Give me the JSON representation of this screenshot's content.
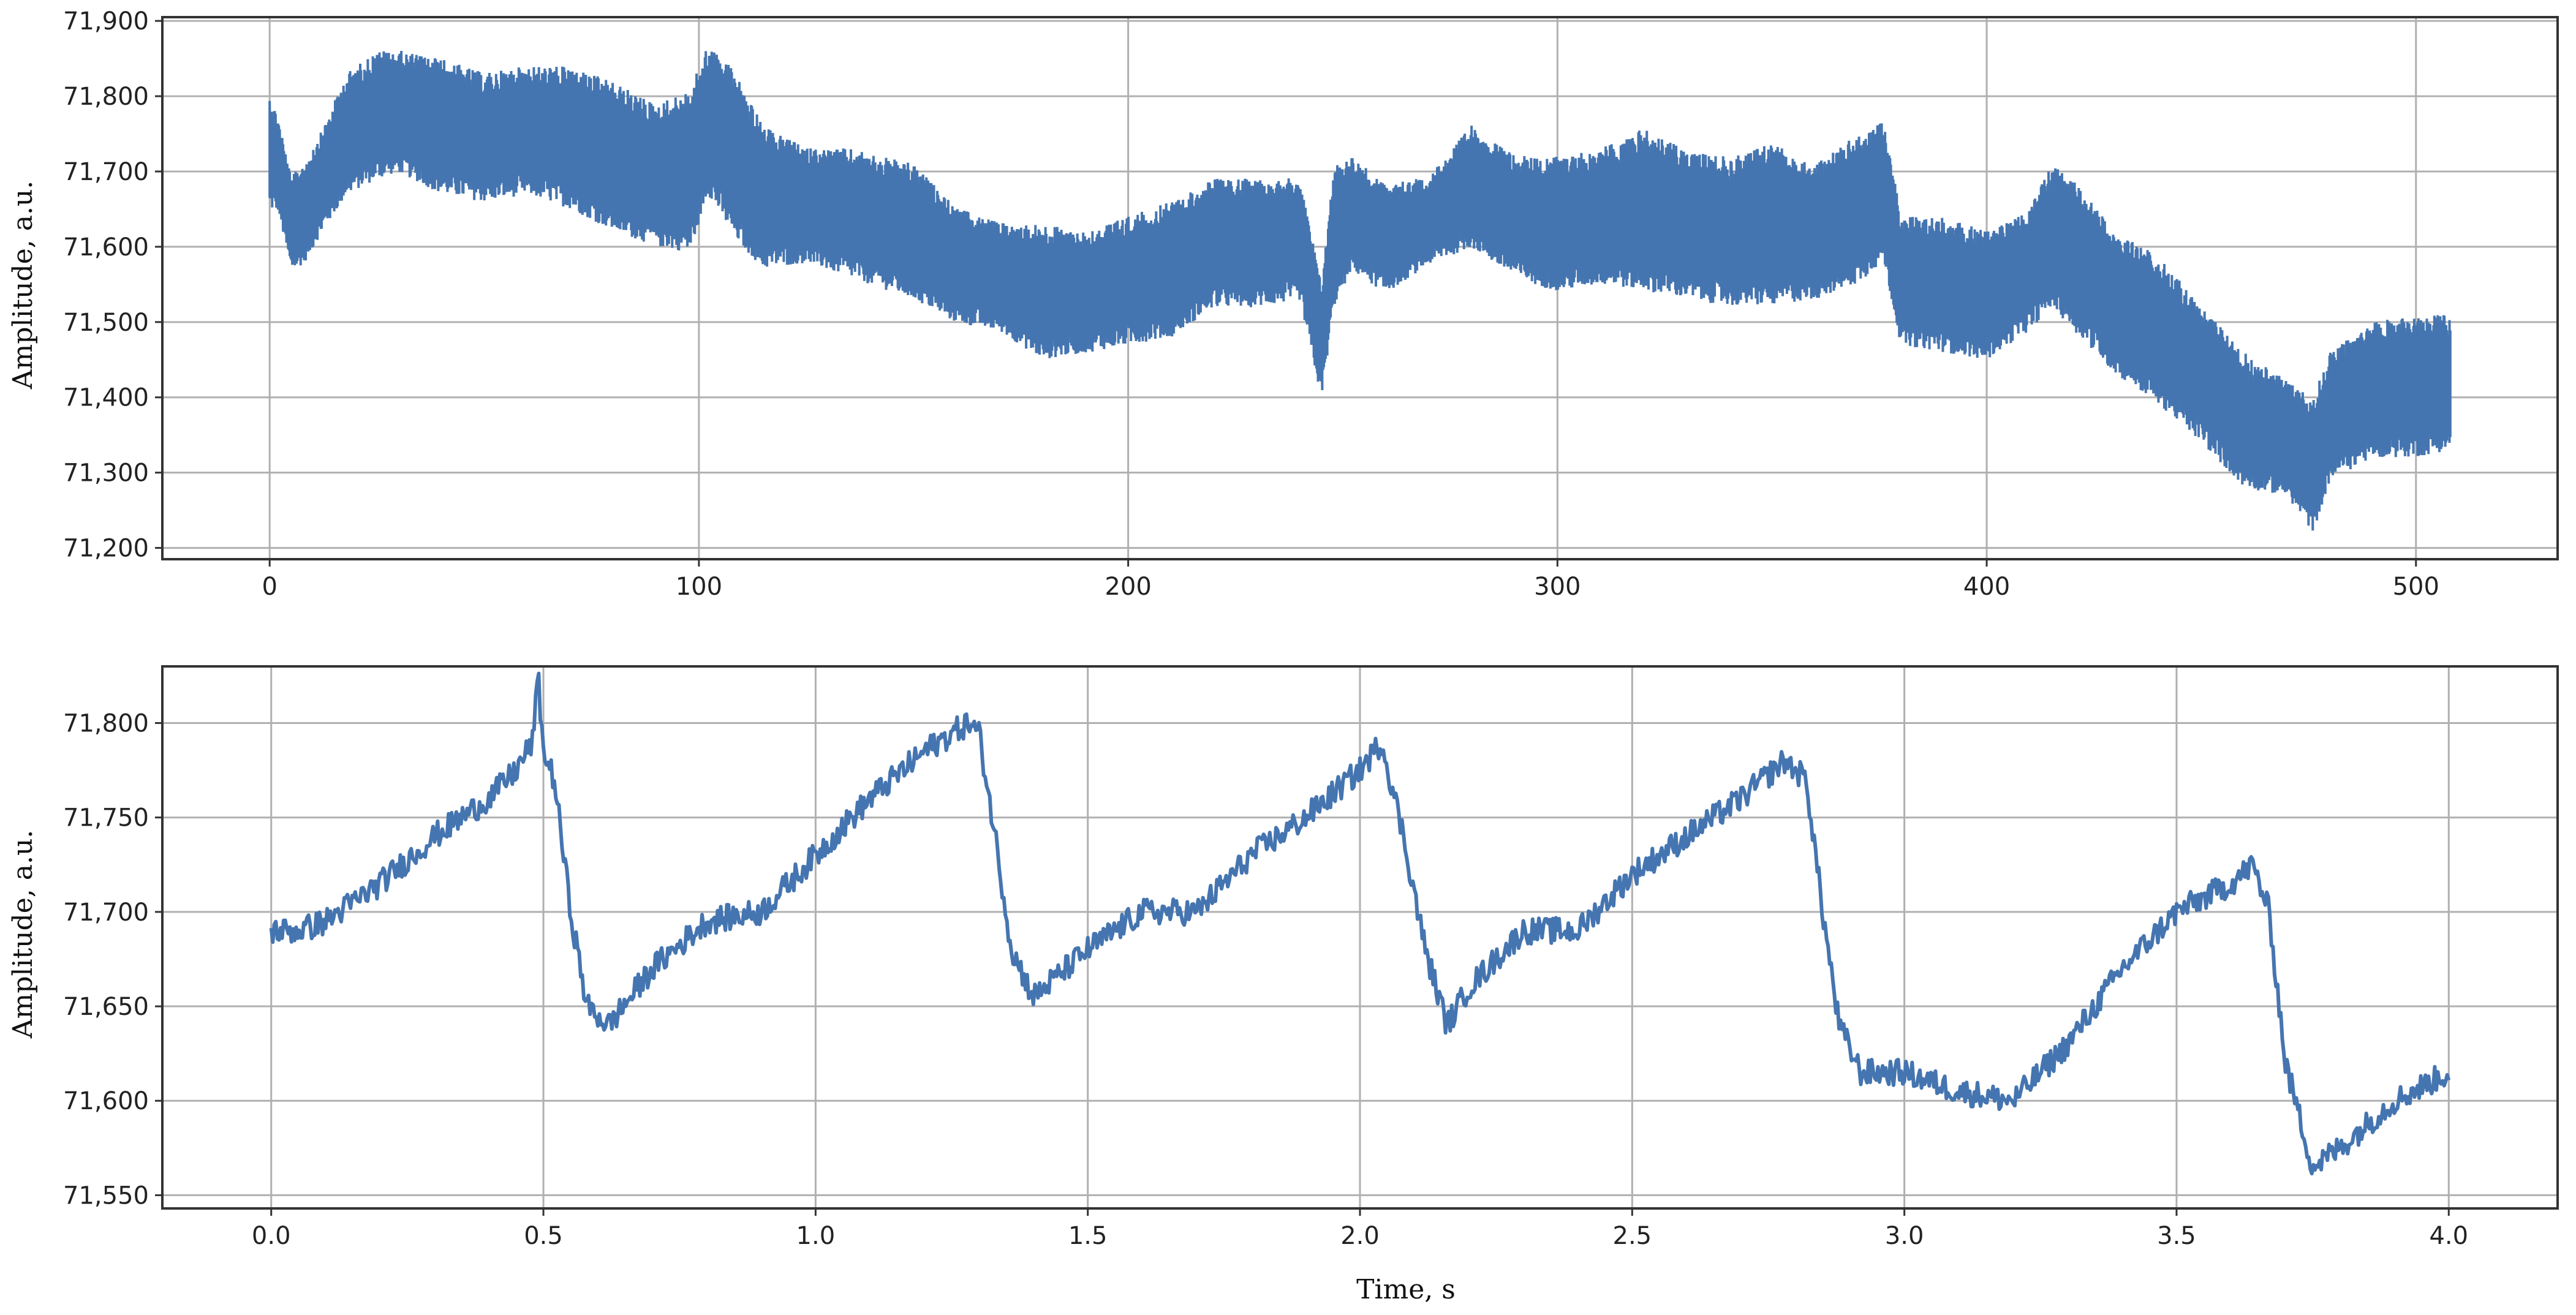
{
  "chart_data": [
    {
      "type": "line",
      "xlabel": "",
      "ylabel": "Amplitude, a.u.",
      "xlim": [
        -25,
        533
      ],
      "ylim": [
        71185,
        71905
      ],
      "xticks": [
        0,
        100,
        200,
        300,
        400,
        500
      ],
      "x_tick_labels": [
        "0",
        "100",
        "200",
        "300",
        "400",
        "500"
      ],
      "yticks": [
        71200,
        71300,
        71400,
        71500,
        71600,
        71700,
        71800,
        71900
      ],
      "y_tick_labels": [
        "71,200",
        "71,300",
        "71,400",
        "71,500",
        "71,600",
        "71,700",
        "71,800",
        "71,900"
      ],
      "grid": true,
      "color": "#4575b0",
      "series": [
        {
          "x": [
            0,
            2,
            5,
            8,
            12,
            18,
            25,
            30,
            40,
            50,
            60,
            70,
            80,
            90,
            98,
            102,
            108,
            115,
            125,
            135,
            150,
            160,
            170,
            180,
            190,
            200,
            210,
            220,
            230,
            240,
            245,
            248,
            252,
            260,
            270,
            280,
            290,
            300,
            310,
            320,
            330,
            340,
            350,
            360,
            370,
            376,
            380,
            390,
            400,
            410,
            415,
            420,
            430,
            440,
            450,
            460,
            470,
            476,
            480,
            490,
            500,
            508
          ],
          "y_lower": [
            71640,
            71640,
            71560,
            71570,
            71610,
            71660,
            71680,
            71690,
            71660,
            71650,
            71660,
            71640,
            71610,
            71590,
            71580,
            71660,
            71600,
            71560,
            71570,
            71550,
            71520,
            71490,
            71480,
            71440,
            71450,
            71460,
            71470,
            71510,
            71510,
            71520,
            71390,
            71510,
            71560,
            71530,
            71570,
            71590,
            71550,
            71530,
            71540,
            71530,
            71520,
            71510,
            71510,
            71520,
            71540,
            71570,
            71460,
            71450,
            71440,
            71480,
            71510,
            71480,
            71420,
            71380,
            71330,
            71270,
            71260,
            71210,
            71280,
            71310,
            71310,
            71320
          ],
          "y_upper": [
            71810,
            71780,
            71700,
            71720,
            71760,
            71840,
            71870,
            71870,
            71860,
            71840,
            71850,
            71850,
            71830,
            71800,
            71820,
            71880,
            71850,
            71770,
            71740,
            71740,
            71720,
            71660,
            71640,
            71640,
            71630,
            71650,
            71670,
            71700,
            71700,
            71700,
            71560,
            71720,
            71730,
            71690,
            71700,
            71770,
            71730,
            71730,
            71740,
            71770,
            71740,
            71730,
            71750,
            71720,
            71760,
            71780,
            71650,
            71650,
            71630,
            71660,
            71720,
            71700,
            71630,
            71600,
            71530,
            71470,
            71430,
            71410,
            71470,
            71510,
            71520,
            71520
          ]
        }
      ]
    },
    {
      "type": "line",
      "xlabel": "Time, s",
      "ylabel": "Amplitude, a.u.",
      "xlim": [
        -0.2,
        4.2
      ],
      "ylim": [
        71543,
        71830
      ],
      "xticks": [
        0.0,
        0.5,
        1.0,
        1.5,
        2.0,
        2.5,
        3.0,
        3.5,
        4.0
      ],
      "x_tick_labels": [
        "0.0",
        "0.5",
        "1.0",
        "1.5",
        "2.0",
        "2.5",
        "3.0",
        "3.5",
        "4.0"
      ],
      "yticks": [
        71550,
        71600,
        71650,
        71700,
        71750,
        71800
      ],
      "y_tick_labels": [
        "71,550",
        "71,600",
        "71,650",
        "71,700",
        "71,750",
        "71,800"
      ],
      "grid": true,
      "color": "#4575b0",
      "series": [
        {
          "x": [
            0.0,
            0.05,
            0.1,
            0.2,
            0.3,
            0.4,
            0.45,
            0.48,
            0.49,
            0.5,
            0.52,
            0.55,
            0.58,
            0.62,
            0.7,
            0.8,
            0.9,
            1.0,
            1.1,
            1.2,
            1.28,
            1.3,
            1.33,
            1.36,
            1.4,
            1.5,
            1.6,
            1.7,
            1.8,
            1.9,
            2.0,
            2.04,
            2.08,
            2.12,
            2.16,
            2.2,
            2.3,
            2.4,
            2.5,
            2.6,
            2.7,
            2.78,
            2.82,
            2.85,
            2.88,
            2.92,
            3.0,
            3.1,
            3.2,
            3.3,
            3.4,
            3.5,
            3.6,
            3.64,
            3.67,
            3.7,
            3.75,
            3.8,
            3.9,
            4.0
          ],
          "y": [
            71690,
            71690,
            71695,
            71715,
            71740,
            71760,
            71775,
            71790,
            71825,
            71785,
            71770,
            71700,
            71650,
            71640,
            71670,
            71695,
            71700,
            71730,
            71760,
            71785,
            71800,
            71795,
            71740,
            71680,
            71655,
            71680,
            71700,
            71700,
            71730,
            71750,
            71775,
            71790,
            71740,
            71680,
            71640,
            71660,
            71690,
            71690,
            71720,
            71740,
            71760,
            71780,
            71770,
            71700,
            71640,
            71615,
            71615,
            71605,
            71600,
            71630,
            71670,
            71700,
            71715,
            71725,
            71700,
            71620,
            71565,
            71575,
            71600,
            71615
          ]
        }
      ]
    }
  ]
}
